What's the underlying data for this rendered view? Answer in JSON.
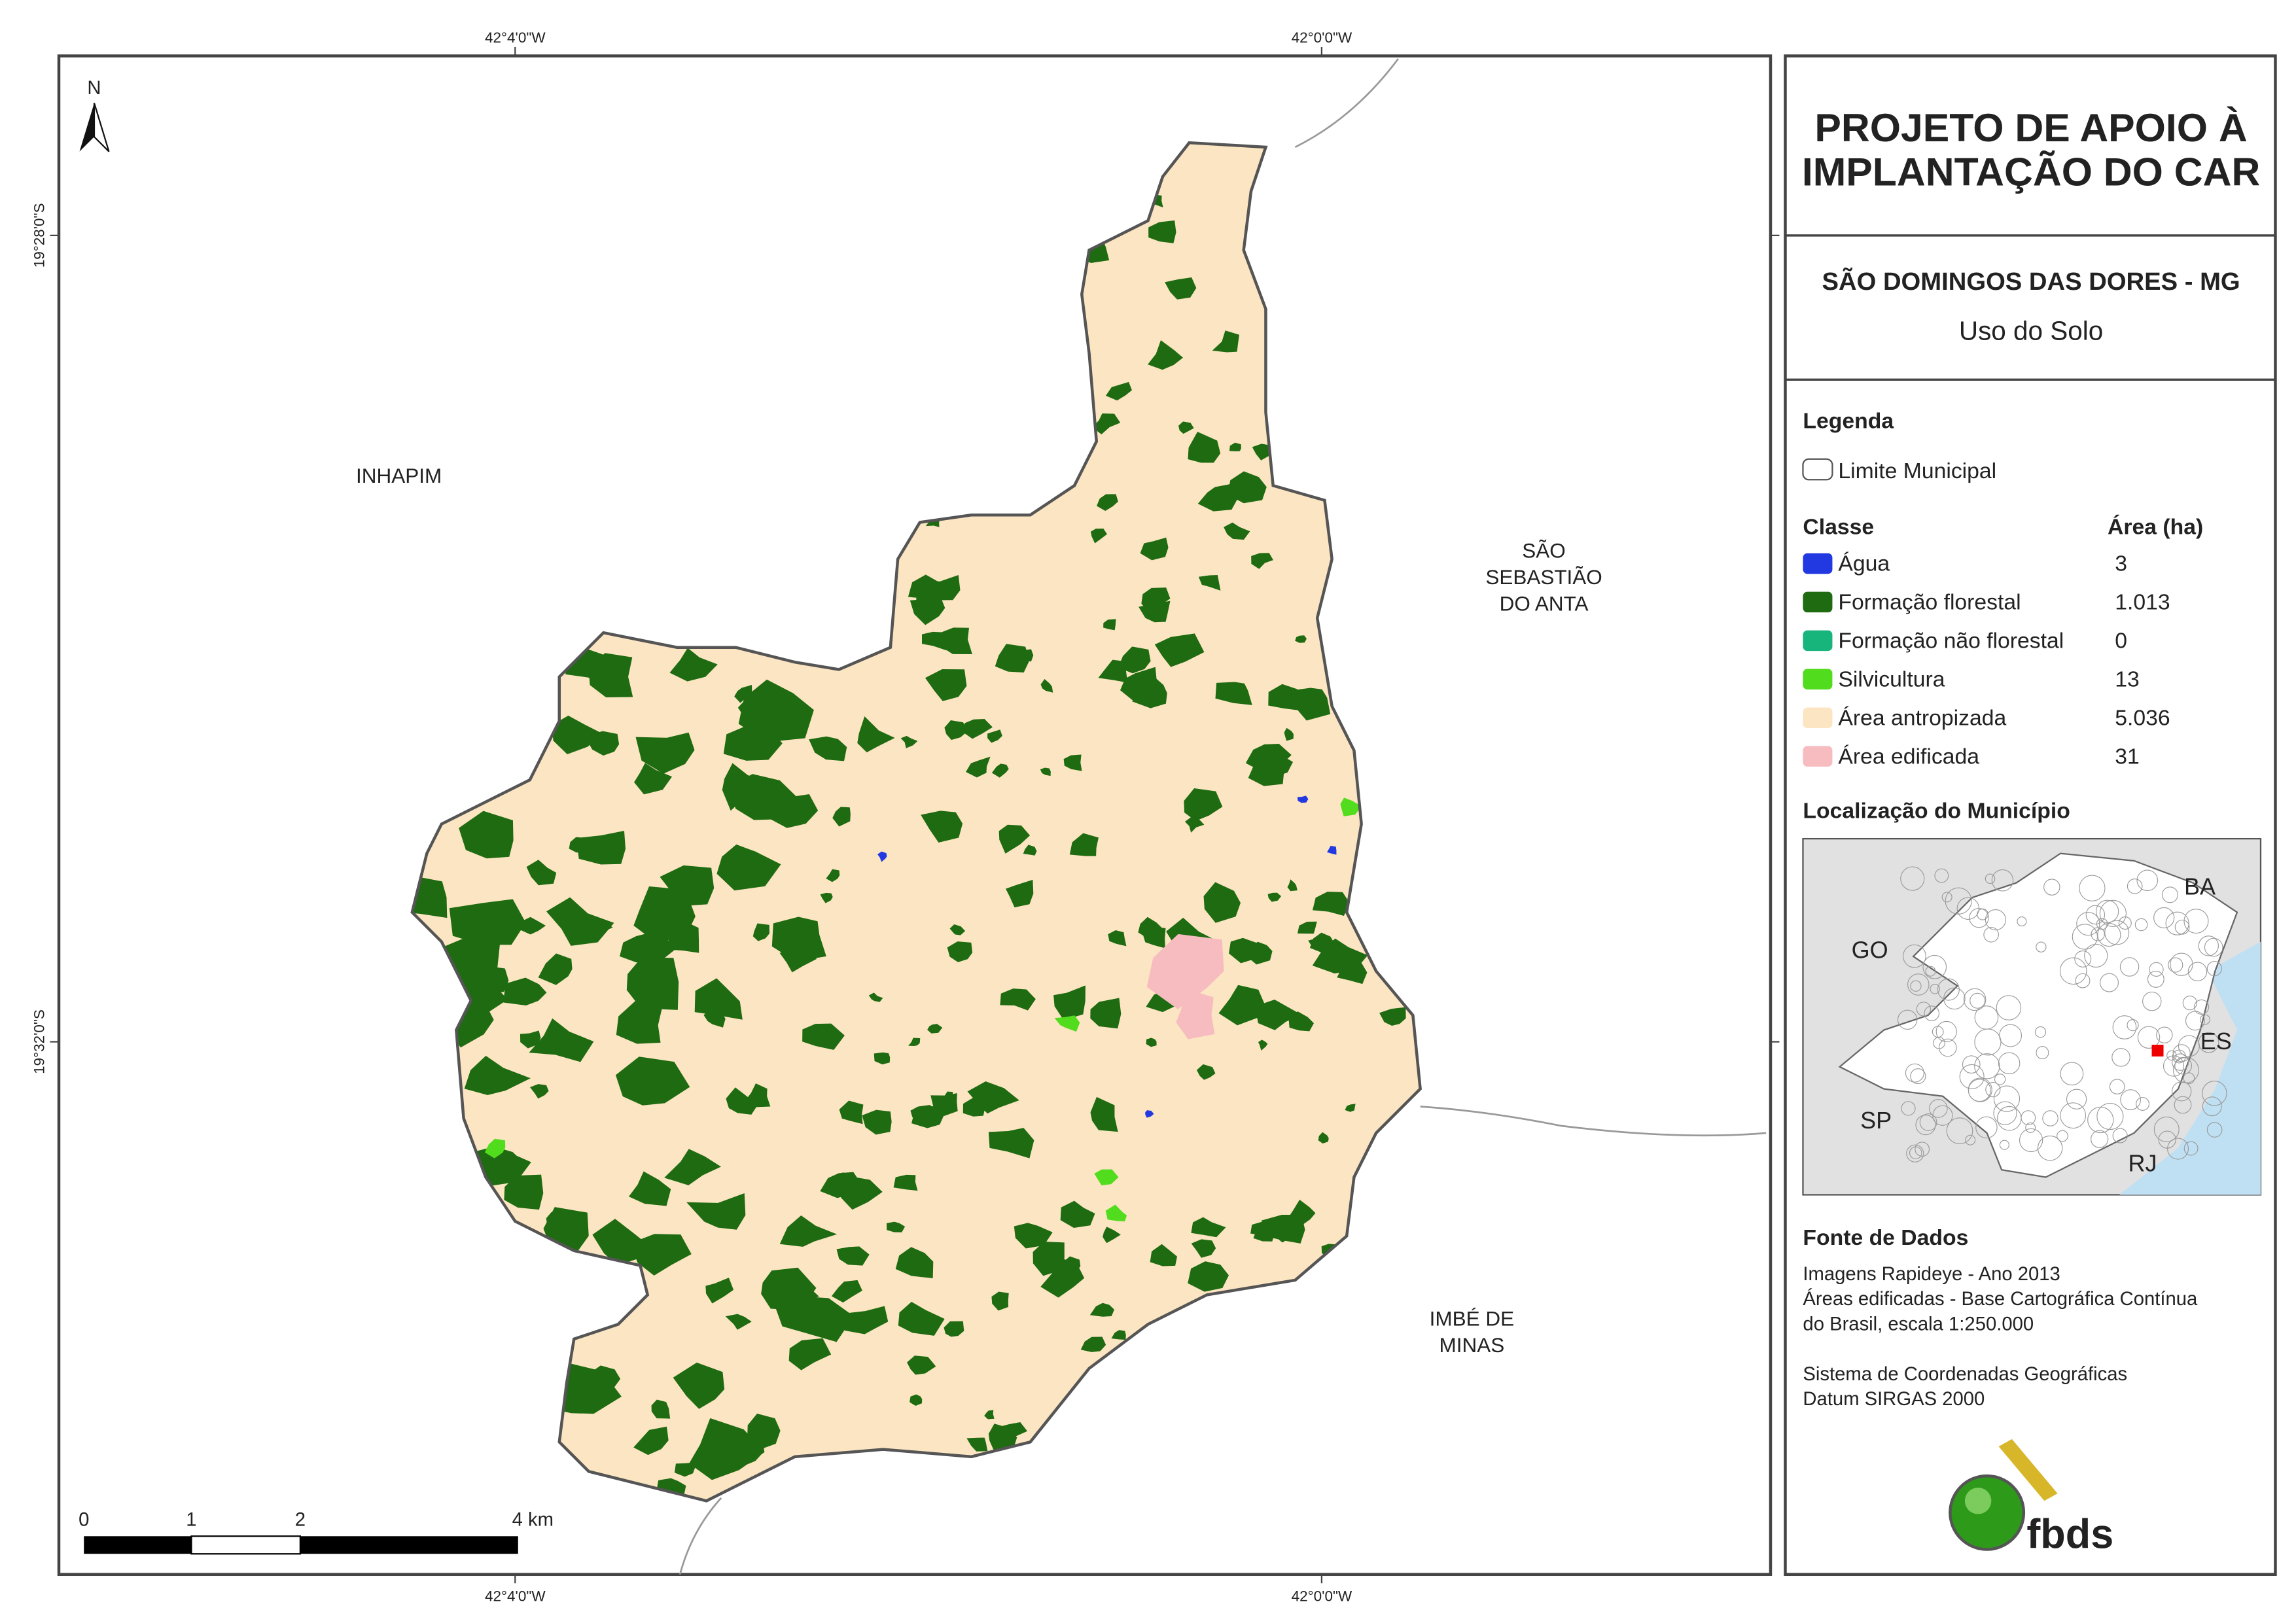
{
  "header": {
    "title": [
      "PROJETO DE APOIO À",
      "IMPLANTAÇÃO DO CAR"
    ],
    "municipality": "SÃO DOMINGOS DAS DORES - MG",
    "subtitle": "Uso do Solo"
  },
  "legend": {
    "title": "Legenda",
    "boundary": "Limite Municipal",
    "class_header": "Classe",
    "area_header": "Área (ha)",
    "classes": [
      {
        "name": "Água",
        "color": "#2238e0",
        "area": "3"
      },
      {
        "name": "Formação florestal",
        "color": "#1e6b12",
        "area": "1.013"
      },
      {
        "name": "Formação não florestal",
        "color": "#17b47c",
        "area": "0"
      },
      {
        "name": "Silvicultura",
        "color": "#52dc1e",
        "area": "13"
      },
      {
        "name": "Área antropizada",
        "color": "#fce5c2",
        "area": "5.036"
      },
      {
        "name": "Área edificada",
        "color": "#f7bcc0",
        "area": "31"
      }
    ]
  },
  "location": {
    "title": "Localização do Município",
    "states": [
      "BA",
      "GO",
      "ES",
      "SP",
      "RJ"
    ]
  },
  "source": {
    "title": "Fonte de Dados",
    "lines": [
      "Imagens Rapideye - Ano 2013",
      "Áreas edificadas - Base Cartográfica Contínua",
      "do Brasil, escala 1:250.000",
      "Sistema de Coordenadas Geográficas",
      "Datum SIRGAS 2000"
    ]
  },
  "logo": "fbds",
  "map": {
    "north": "N",
    "neighbors": [
      [
        "INHAPIM"
      ],
      [
        "SÃO",
        "SEBASTIÃO",
        "DO ANTA"
      ],
      [
        "IMBÉ DE",
        "MINAS"
      ]
    ],
    "lon_labels": [
      "42°4'0\"W",
      "42°0'0\"W"
    ],
    "lat_labels": [
      "19°28'0\"S",
      "19°32'0\"S"
    ],
    "scale_labels": [
      "0",
      "1",
      "2",
      "4 km"
    ]
  }
}
